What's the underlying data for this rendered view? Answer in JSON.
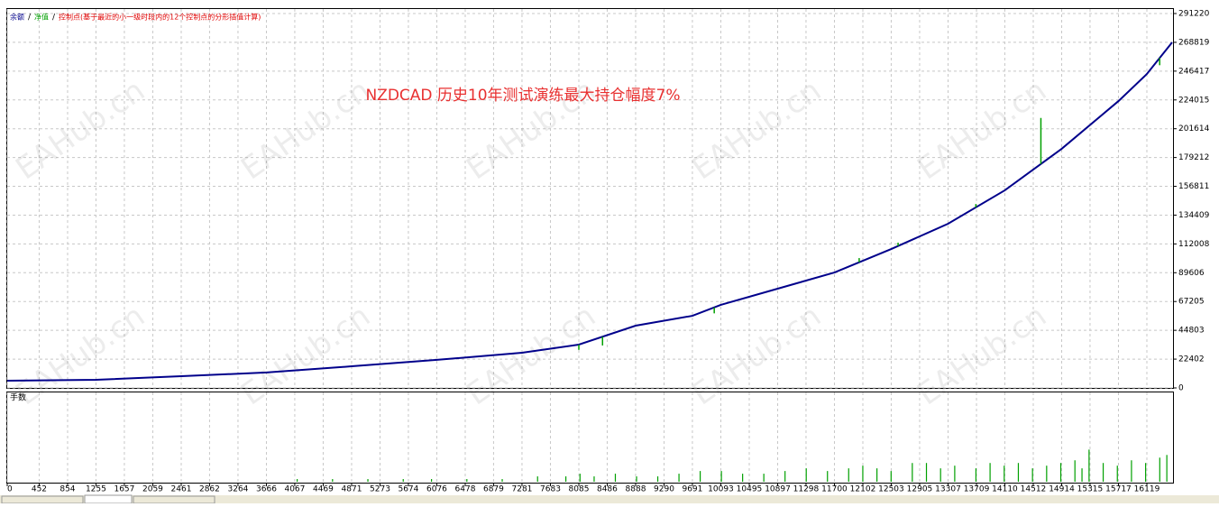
{
  "watermark": "EAHub.cn",
  "chart_data": [
    {
      "type": "line",
      "annotation": "NZDCAD  历史10年测试演练最大持仓幅度7%",
      "xlim": [
        0,
        16476
      ],
      "ylim": [
        0,
        291220
      ],
      "xticks": [
        0,
        452,
        854,
        1255,
        1657,
        2059,
        2461,
        2862,
        3264,
        3666,
        4067,
        4469,
        4871,
        5273,
        5674,
        6076,
        6478,
        6879,
        7281,
        7683,
        8085,
        8486,
        8888,
        9290,
        9691,
        10093,
        10495,
        10897,
        11298,
        11700,
        12102,
        12503,
        12905,
        13307,
        13709,
        14110,
        14512,
        14914,
        15315,
        15717,
        16119
      ],
      "yticks": [
        0,
        22402,
        44803,
        67205,
        89606,
        112008,
        134409,
        156811,
        179212,
        201614,
        224015,
        246417,
        268819,
        291220
      ],
      "grid": true,
      "series": [
        {
          "name": "余额",
          "color": "#00008b",
          "x": [
            0,
            1255,
            2461,
            3666,
            4871,
            6076,
            7281,
            8085,
            8888,
            9691,
            10093,
            10897,
            11700,
            12503,
            13307,
            14110,
            14914,
            15717,
            16119,
            16476
          ],
          "values": [
            5600,
            6300,
            9100,
            12000,
            16800,
            21800,
            27400,
            33700,
            48400,
            56100,
            64600,
            77200,
            89800,
            108000,
            127700,
            153700,
            186000,
            223100,
            244200,
            268800
          ]
        },
        {
          "name": "净值",
          "color": "#00a000",
          "x": [
            8085,
            8420,
            10000,
            12050,
            12600,
            13700,
            14620,
            16300
          ],
          "values": [
            29600,
            33000,
            58000,
            101000,
            113000,
            143000,
            210000,
            251000
          ]
        },
        {
          "name": "控制点(基于最近的小一级时段内的12个控制点的分形插值计算)",
          "color": "#e00000",
          "x": [],
          "values": []
        }
      ]
    },
    {
      "type": "bar",
      "label": "手数",
      "color": "#00a000",
      "xlim": [
        0,
        16476
      ],
      "ylim": [
        0,
        0.33
      ],
      "x": [
        4100,
        4600,
        5100,
        5600,
        6000,
        6500,
        7000,
        7500,
        7900,
        8100,
        8300,
        8600,
        8900,
        9200,
        9500,
        9800,
        10100,
        10400,
        10700,
        11000,
        11300,
        11600,
        11900,
        12100,
        12300,
        12500,
        12800,
        13000,
        13200,
        13400,
        13700,
        13900,
        14100,
        14300,
        14500,
        14700,
        14900,
        15100,
        15200,
        15300,
        15500,
        15700,
        15900,
        16100,
        16300,
        16400
      ],
      "values": [
        0.01,
        0.01,
        0.01,
        0.01,
        0.01,
        0.01,
        0.01,
        0.02,
        0.02,
        0.03,
        0.02,
        0.03,
        0.02,
        0.02,
        0.03,
        0.04,
        0.04,
        0.03,
        0.03,
        0.04,
        0.05,
        0.04,
        0.05,
        0.06,
        0.05,
        0.04,
        0.07,
        0.07,
        0.05,
        0.06,
        0.05,
        0.07,
        0.06,
        0.07,
        0.05,
        0.06,
        0.07,
        0.08,
        0.05,
        0.12,
        0.07,
        0.06,
        0.08,
        0.07,
        0.09,
        0.1
      ]
    }
  ]
}
